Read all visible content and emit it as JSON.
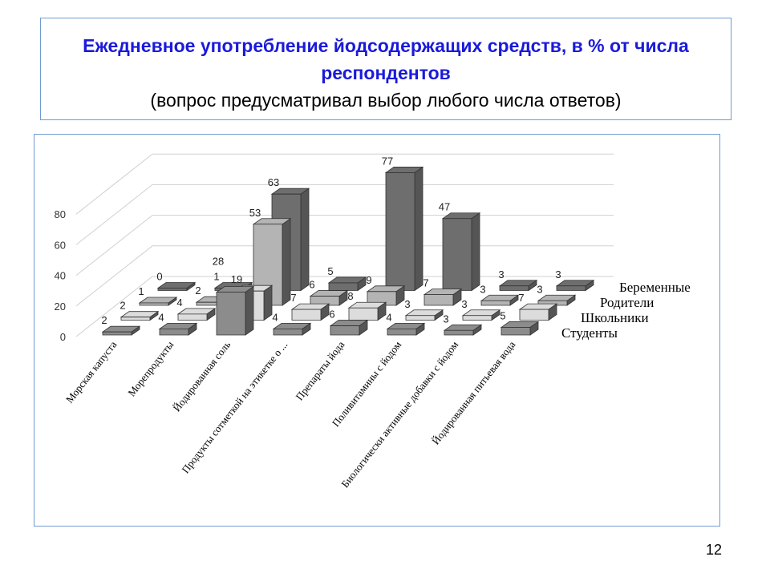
{
  "title": {
    "main": "Ежедневное употребление йодсодержащих средств, в % от числа респондентов",
    "note": "(вопрос предусматривал выбор любого числа ответов)"
  },
  "page_number": "12",
  "chart_data": {
    "type": "bar",
    "subtype": "3d-column",
    "categories": [
      "Морская капуста",
      "Морепродукты",
      "Йодированная соль",
      "Продукты сотметкой на этикетке о ...",
      "Препараты йода",
      "Поливитамины с йодом",
      "Биологически активные добавки с йодом",
      "Йодированная питьевая вода"
    ],
    "series": [
      {
        "name": "Студенты",
        "color": "#8c8c8c",
        "values": [
          2,
          4,
          28,
          4,
          6,
          4,
          3,
          5
        ]
      },
      {
        "name": "Школьники",
        "color": "#dcdcdc",
        "values": [
          2,
          4,
          19,
          7,
          8,
          3,
          3,
          7
        ]
      },
      {
        "name": "Родители",
        "color": "#b4b4b4",
        "values": [
          1,
          2,
          53,
          6,
          9,
          7,
          3,
          3
        ]
      },
      {
        "name": "Беременные",
        "color": "#6e6e6e",
        "values": [
          0,
          1,
          63,
          5,
          77,
          47,
          3,
          3
        ]
      }
    ],
    "yticks": [
      "0",
      "20",
      "40",
      "60",
      "80"
    ],
    "ylim": [
      0,
      80
    ],
    "grid": true,
    "legend": "right"
  }
}
